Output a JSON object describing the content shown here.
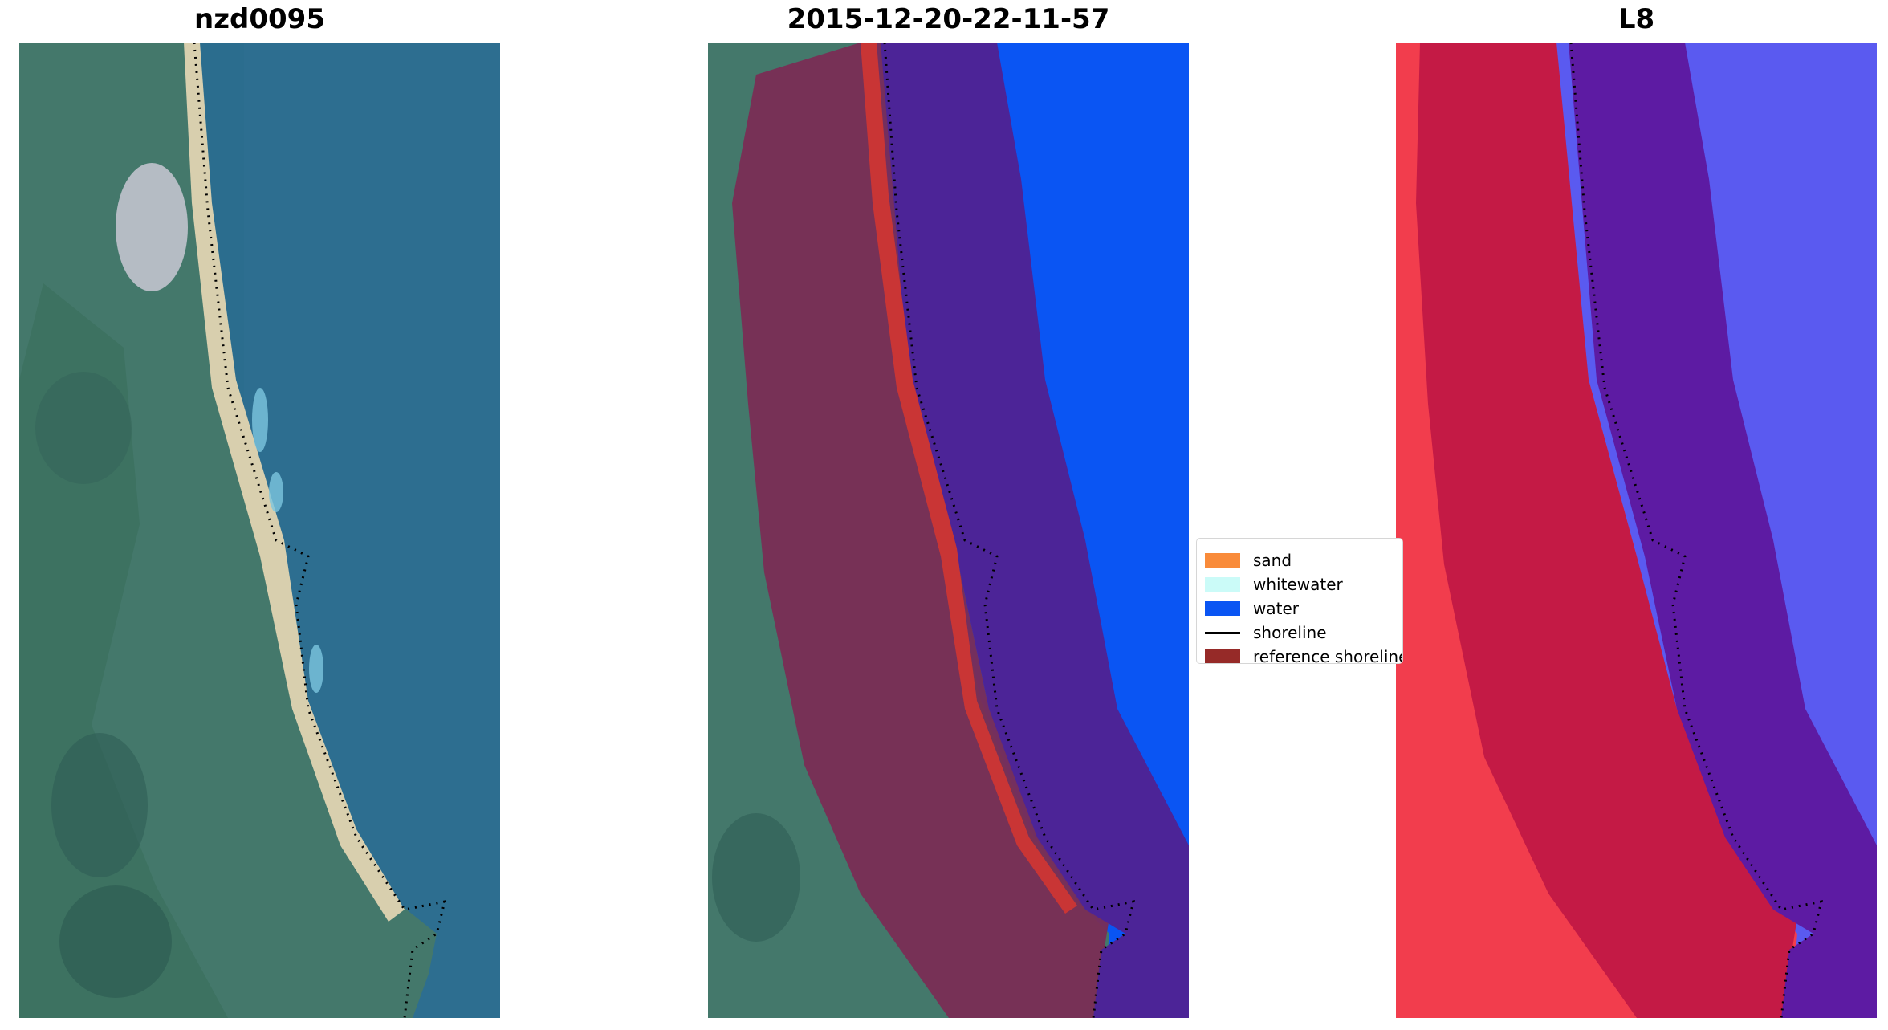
{
  "panels": [
    {
      "title": "nzd0095"
    },
    {
      "title": "2015-12-20-22-11-57"
    },
    {
      "title": "L8"
    }
  ],
  "legend": {
    "items": [
      {
        "label": "sand",
        "color": "#f98b3a",
        "kind": "patch"
      },
      {
        "label": "whitewater",
        "color": "#cbfbf8",
        "kind": "patch"
      },
      {
        "label": "water",
        "color": "#0a55f3",
        "kind": "patch"
      },
      {
        "label": "shoreline",
        "color": "#000000",
        "kind": "line"
      },
      {
        "label": "reference shoreline",
        "color": "#962a28",
        "kind": "patch"
      }
    ]
  },
  "colors": {
    "land": "#3f7a6a",
    "sea": "#2d6e8c",
    "sand_beach": "#d8cfae",
    "reference_buffer": "#7a2d55",
    "water_class_buffer": "#4c2497",
    "water_class": "#0a55f3",
    "sand_class": "#c93535",
    "l8_land": "#f23d4d",
    "l8_buffer_land": "#c41a45",
    "l8_buffer_sea": "#5d1ba3",
    "l8_sea": "#5a5af0"
  }
}
